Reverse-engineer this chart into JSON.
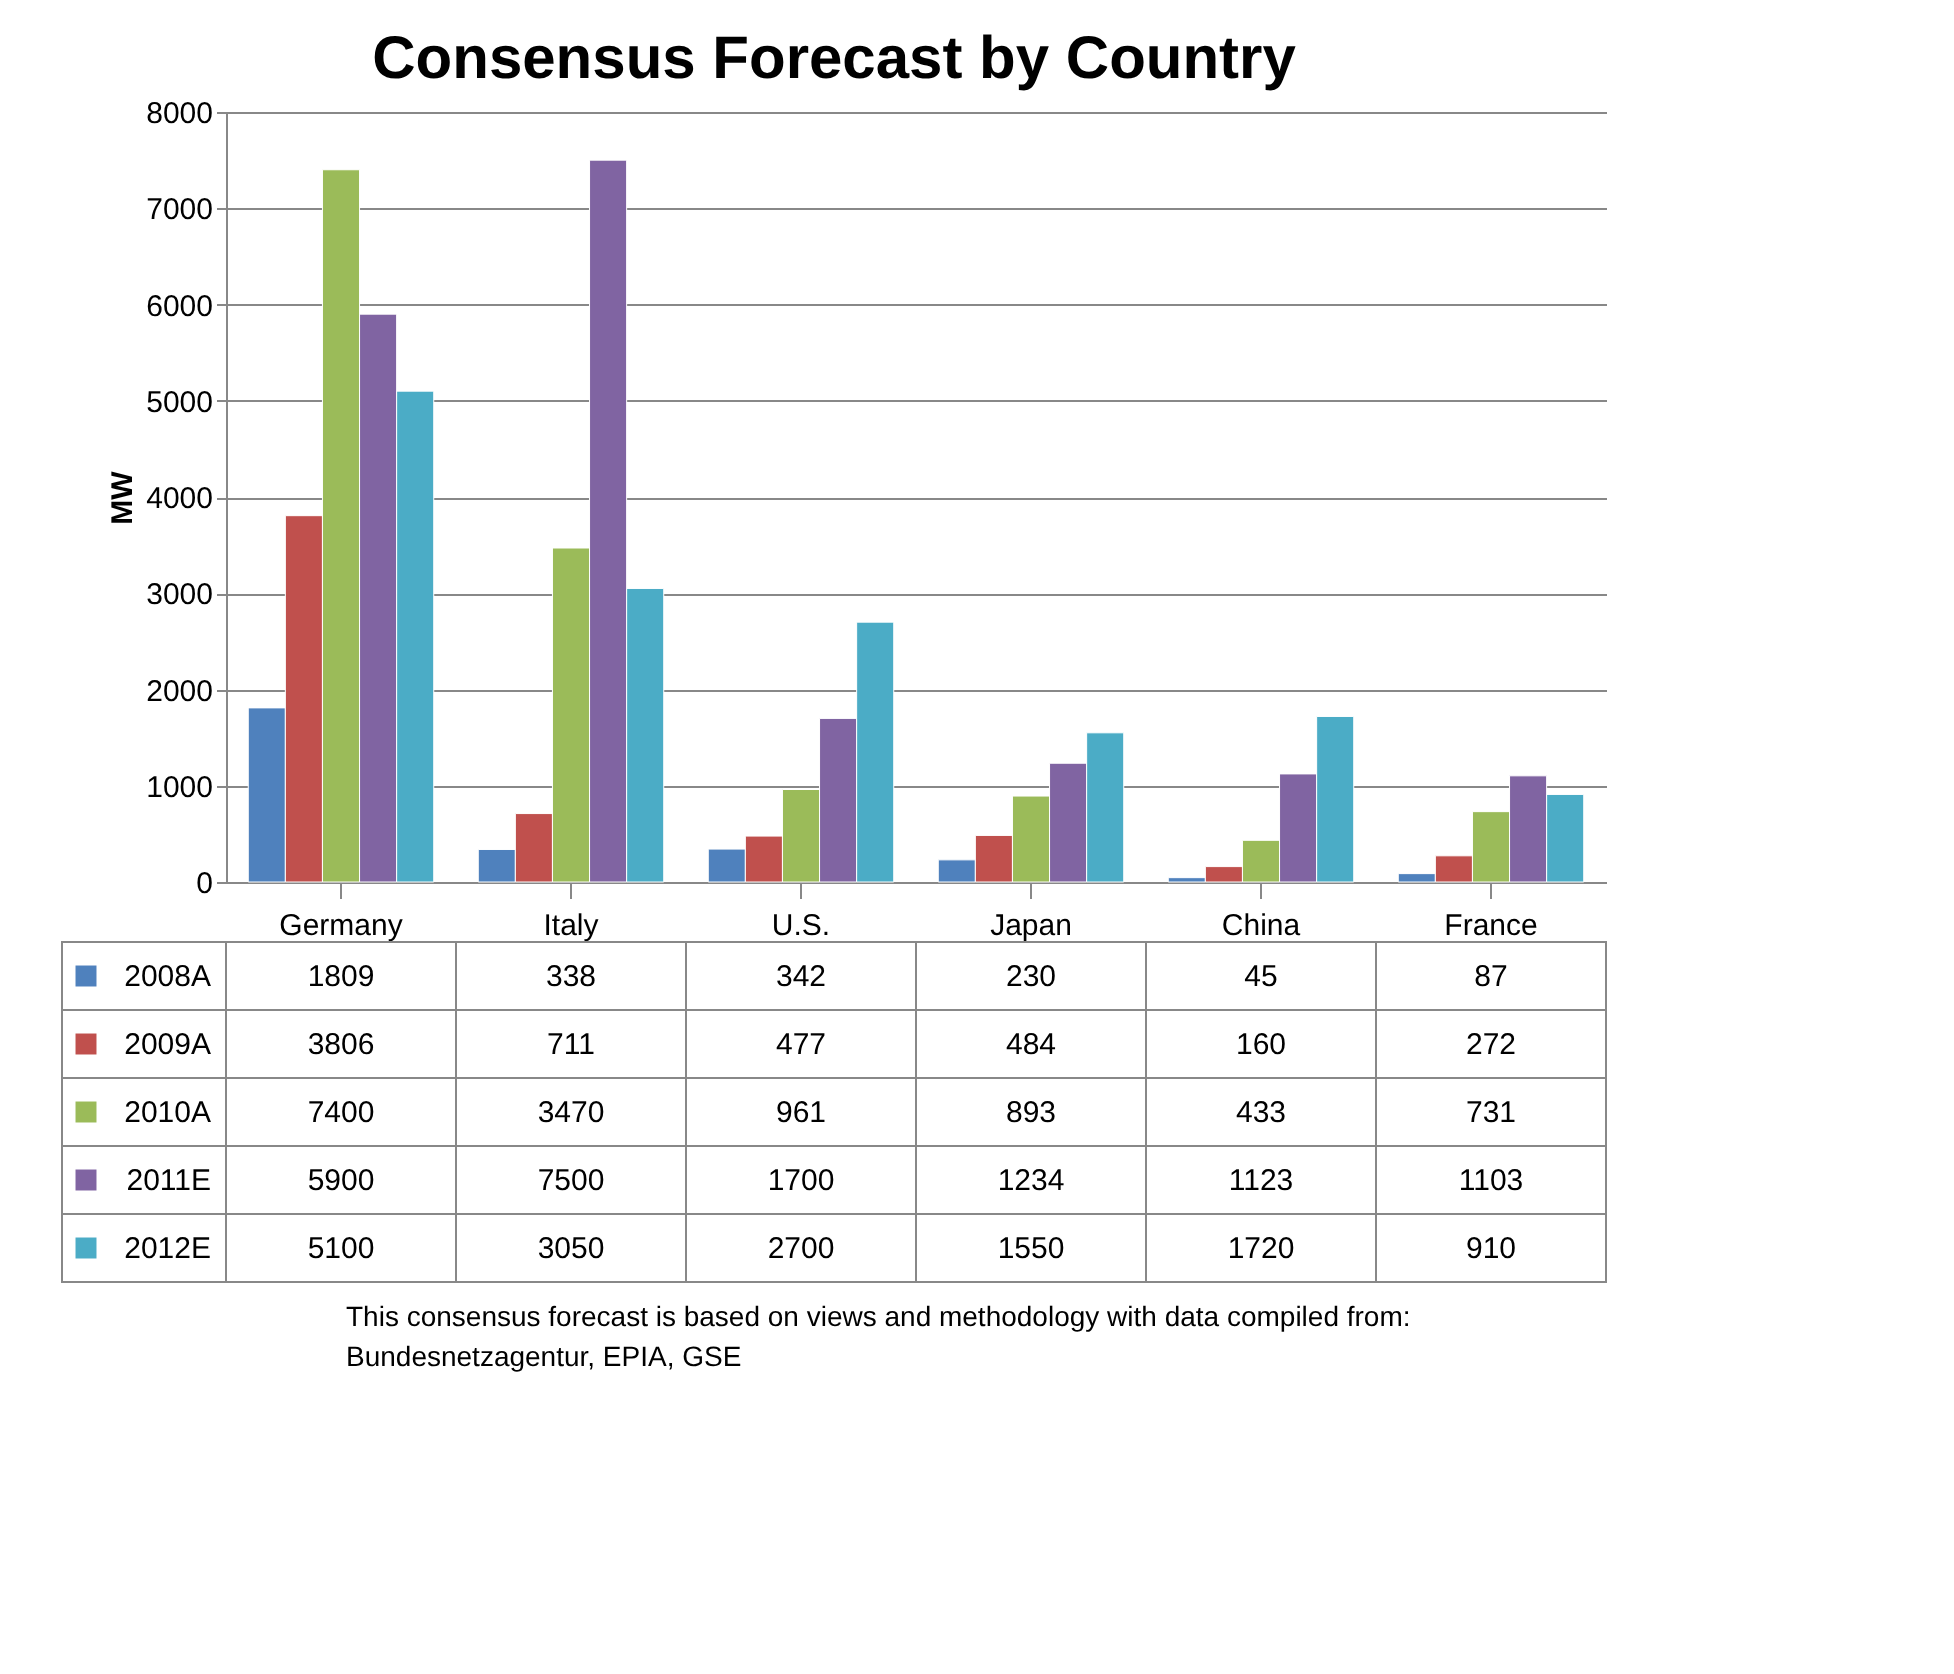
{
  "chart_data": {
    "type": "bar",
    "title": "Consensus Forecast by Country",
    "ylabel": "MW",
    "categories": [
      "Germany",
      "Italy",
      "U.S.",
      "Japan",
      "China",
      "France"
    ],
    "series": [
      {
        "name": "2008A",
        "color": "#4f81bd",
        "values": [
          1809,
          338,
          342,
          230,
          45,
          87
        ]
      },
      {
        "name": "2009A",
        "color": "#c0504d",
        "values": [
          3806,
          711,
          477,
          484,
          160,
          272
        ]
      },
      {
        "name": "2010A",
        "color": "#9bbb59",
        "values": [
          7400,
          3470,
          961,
          893,
          433,
          731
        ]
      },
      {
        "name": "2011E",
        "color": "#8064a2",
        "values": [
          5900,
          7500,
          1700,
          1234,
          1123,
          1103
        ]
      },
      {
        "name": "2012E",
        "color": "#4bacc6",
        "values": [
          5100,
          3050,
          2700,
          1550,
          1720,
          910
        ]
      }
    ],
    "ylim": [
      0,
      8000
    ],
    "yticks": [
      0,
      1000,
      2000,
      3000,
      4000,
      5000,
      6000,
      7000,
      8000
    ],
    "grid": "y",
    "data_labels": true,
    "legend": "bottom",
    "annotations": [
      "This consensus forecast is based on views and methodology with data compiled from: Bundesnetzagentur, EPIA, GSE"
    ]
  }
}
